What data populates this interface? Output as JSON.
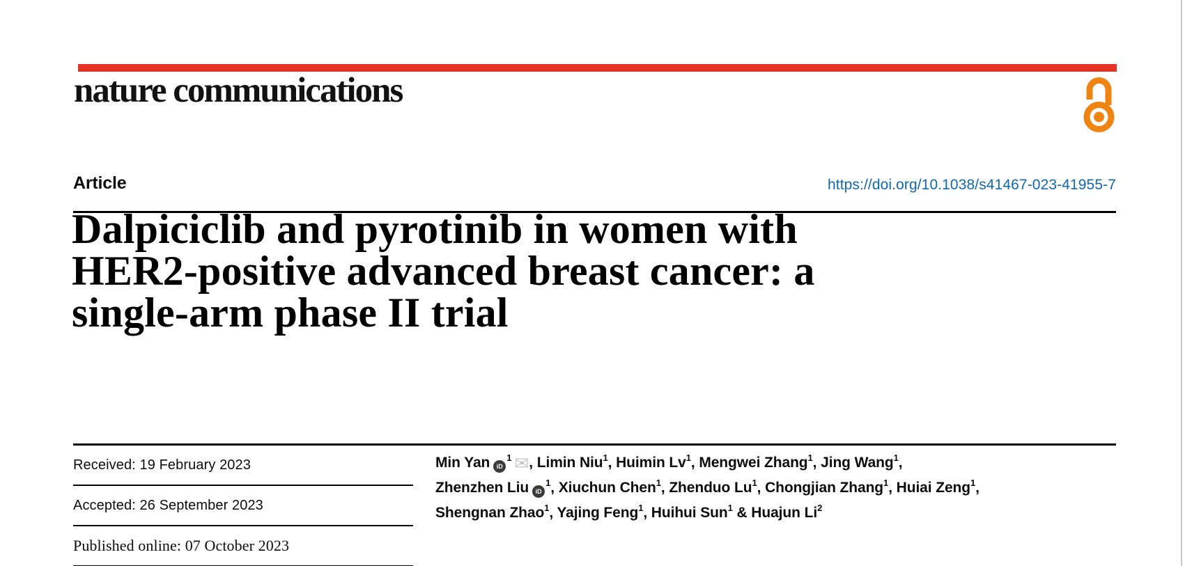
{
  "brand": {
    "logo_text": "nature communications",
    "open_access_icon": "open-lock"
  },
  "header": {
    "article_label": "Article",
    "doi": "https://doi.org/10.1038/s41467-023-41955-7"
  },
  "title": {
    "lines": [
      "Dalpiciclib and pyrotinib in women with",
      "HER2-positive advanced breast cancer: a",
      "single-arm phase II trial"
    ]
  },
  "dates": [
    {
      "label": "Received:",
      "value": "19 February 2023"
    },
    {
      "label": "Accepted:",
      "value": "26 September 2023"
    },
    {
      "label": "Published online:",
      "value": "07 October 2023"
    }
  ],
  "authors": {
    "orcid_icon_text": "iD",
    "mail_icon_glyph": "✉",
    "lines": [
      [
        {
          "t": "Min Yan"
        },
        {
          "i": "orcid"
        },
        {
          "s": "1"
        },
        {
          "i": "mail"
        },
        {
          "t": ", Limin Niu"
        },
        {
          "s": "1"
        },
        {
          "t": ", Huimin Lv"
        },
        {
          "s": "1"
        },
        {
          "t": ", Mengwei Zhang"
        },
        {
          "s": "1"
        },
        {
          "t": ", Jing Wang"
        },
        {
          "s": "1"
        },
        {
          "t": ","
        }
      ],
      [
        {
          "t": "Zhenzhen Liu"
        },
        {
          "i": "orcid"
        },
        {
          "s": "1"
        },
        {
          "t": ", Xiuchun Chen"
        },
        {
          "s": "1"
        },
        {
          "t": ", Zhenduo Lu"
        },
        {
          "s": "1"
        },
        {
          "t": ", Chongjian Zhang"
        },
        {
          "s": "1"
        },
        {
          "t": ", Huiai Zeng"
        },
        {
          "s": "1"
        },
        {
          "t": ","
        }
      ],
      [
        {
          "t": "Shengnan Zhao"
        },
        {
          "s": "1"
        },
        {
          "t": ", Yajing Feng"
        },
        {
          "s": "1"
        },
        {
          "t": ", Huihui Sun"
        },
        {
          "s": "1"
        },
        {
          "t": " & Huajun Li"
        },
        {
          "s": "2"
        }
      ]
    ]
  },
  "colors": {
    "brand_red": "#e63323",
    "link_blue": "#0f67b1",
    "open_access_orange": "#ef8412",
    "page_edge_gray": "#c9c9c9"
  }
}
